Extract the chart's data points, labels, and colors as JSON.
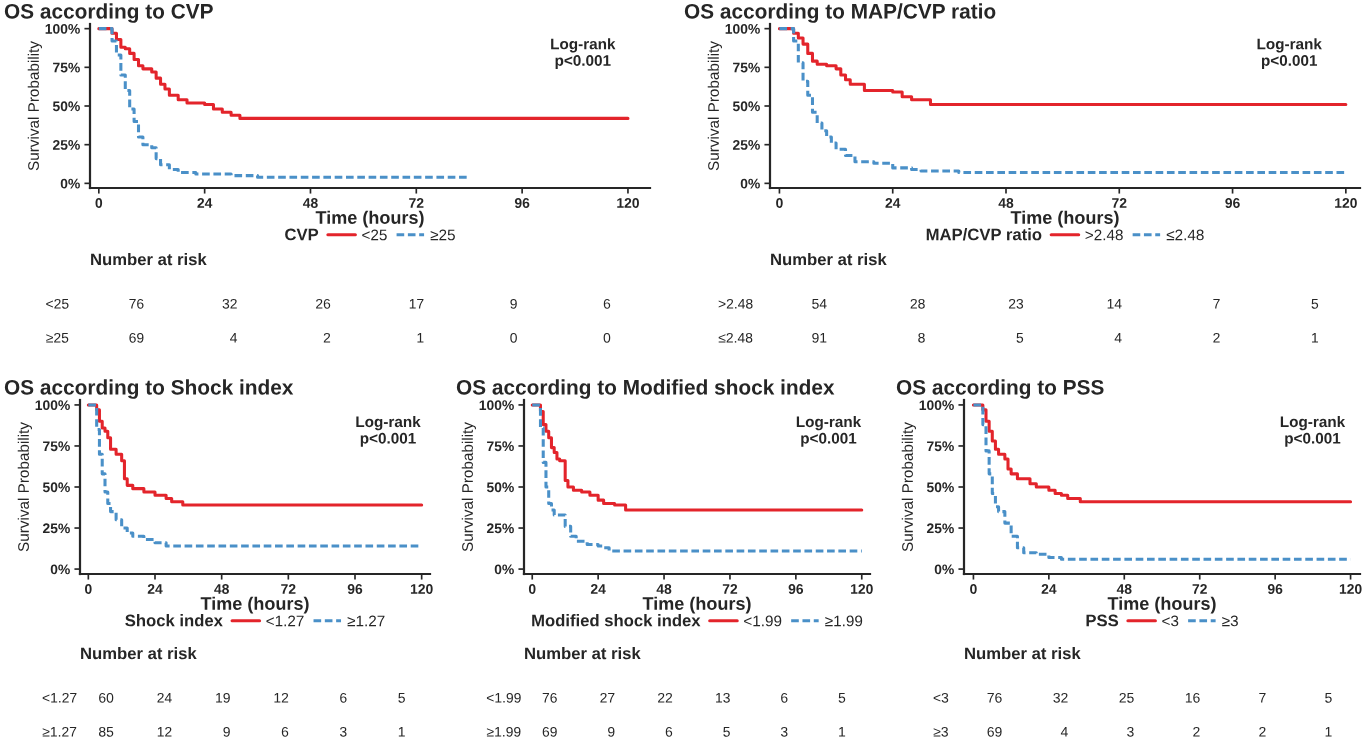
{
  "chart_data": [
    {
      "type": "step",
      "title": "OS according to CVP",
      "xlabel": "Time (hours)",
      "ylabel": "Survival Probability",
      "legend_title": "CVP",
      "legend": "bottom",
      "annotations": [
        "Log-rank\np<0.001"
      ],
      "xlim": [
        -2,
        125
      ],
      "xticks": [
        0,
        24,
        48,
        72,
        96,
        120
      ],
      "ylim": [
        -3,
        103
      ],
      "yticks": [
        {
          "value": 0,
          "label": "0%"
        },
        {
          "value": 25,
          "label": "25%"
        },
        {
          "value": 50,
          "label": "50%"
        },
        {
          "value": 75,
          "label": "75%"
        },
        {
          "value": 100,
          "label": "100%"
        }
      ],
      "series": [
        {
          "name": "<25",
          "color": "#e3242b",
          "line_style": "solid",
          "x": [
            0,
            2,
            3,
            4,
            5,
            6,
            7,
            8,
            9,
            10,
            12,
            13,
            14,
            15,
            16,
            18,
            20,
            24,
            26,
            28,
            30,
            32,
            120
          ],
          "values": [
            100,
            100,
            97,
            93,
            88,
            87,
            84,
            80,
            76,
            74,
            72,
            68,
            64,
            61,
            57,
            54,
            52,
            51,
            48,
            46,
            44,
            42,
            42
          ]
        },
        {
          "name": "≥25",
          "color": "#4a90c8",
          "line_style": "dashed",
          "x": [
            0,
            2,
            3,
            4,
            5,
            6,
            7,
            8,
            9,
            10,
            12,
            13,
            14,
            16,
            18,
            22,
            30,
            36,
            84
          ],
          "values": [
            100,
            100,
            92,
            83,
            70,
            60,
            48,
            40,
            30,
            25,
            23,
            16,
            12,
            9,
            7,
            6,
            5,
            4,
            4
          ]
        }
      ]
    },
    {
      "type": "step",
      "title": "OS according to MAP/CVP ratio",
      "xlabel": "Time (hours)",
      "ylabel": "Survival Probability",
      "legend_title": "MAP/CVP ratio",
      "legend": "bottom",
      "annotations": [
        "Log-rank\np<0.001"
      ],
      "xlim": [
        -2,
        123
      ],
      "xticks": [
        0,
        24,
        48,
        72,
        96,
        120
      ],
      "ylim": [
        -3,
        103
      ],
      "yticks": [
        {
          "value": 0,
          "label": "0%"
        },
        {
          "value": 25,
          "label": "25%"
        },
        {
          "value": 50,
          "label": "50%"
        },
        {
          "value": 75,
          "label": "75%"
        },
        {
          "value": 100,
          "label": "100%"
        }
      ],
      "series": [
        {
          "name": ">2.48",
          "color": "#e3242b",
          "line_style": "solid",
          "x": [
            0,
            2,
            3,
            4,
            5,
            6,
            7,
            8,
            10,
            12,
            13,
            14,
            15,
            18,
            24,
            26,
            28,
            32,
            120
          ],
          "values": [
            100,
            100,
            97,
            94,
            90,
            84,
            79,
            77,
            76,
            74,
            70,
            67,
            64,
            60,
            59,
            56,
            54,
            51,
            51
          ]
        },
        {
          "name": "≤2.48",
          "color": "#4a90c8",
          "line_style": "dashed",
          "x": [
            0,
            2,
            3,
            4,
            5,
            6,
            7,
            8,
            9,
            10,
            11,
            12,
            14,
            16,
            20,
            24,
            28,
            30,
            38,
            120
          ],
          "values": [
            100,
            100,
            92,
            78,
            66,
            57,
            46,
            39,
            34,
            30,
            26,
            22,
            18,
            14,
            13,
            10,
            9,
            8,
            7,
            7
          ]
        }
      ]
    },
    {
      "type": "other",
      "title": "Number at risk",
      "annotations": [
        "<25",
        "76",
        "32",
        "26",
        "17",
        "9",
        "6",
        "≥25",
        "69",
        "4",
        "2",
        "1",
        "0",
        "0"
      ]
    },
    {
      "type": "other",
      "title": "Number at risk",
      "annotations": [
        ">2.48",
        "54",
        "28",
        "23",
        "14",
        "7",
        "5",
        "≤2.48",
        "91",
        "8",
        "5",
        "4",
        "2",
        "1"
      ]
    },
    {
      "type": "step",
      "title": "OS according to Shock index",
      "xlabel": "Time (hours)",
      "ylabel": "Survival Probability",
      "legend_title": "Shock index",
      "legend": "bottom",
      "annotations": [
        "Log-rank\np<0.001"
      ],
      "xlim": [
        -3,
        123
      ],
      "xticks": [
        0,
        24,
        48,
        72,
        96,
        120
      ],
      "ylim": [
        -3,
        103
      ],
      "yticks": [
        {
          "value": 0,
          "label": "0%"
        },
        {
          "value": 25,
          "label": "25%"
        },
        {
          "value": 50,
          "label": "50%"
        },
        {
          "value": 75,
          "label": "75%"
        },
        {
          "value": 100,
          "label": "100%"
        }
      ],
      "series": [
        {
          "name": "<1.27",
          "color": "#e3242b",
          "line_style": "solid",
          "x": [
            0,
            3,
            4,
            5,
            6,
            7,
            8,
            10,
            12,
            13,
            14,
            16,
            20,
            24,
            28,
            30,
            34,
            120
          ],
          "values": [
            100,
            97,
            90,
            86,
            84,
            80,
            73,
            70,
            66,
            55,
            51,
            49,
            47,
            45,
            43,
            41,
            39,
            39
          ]
        },
        {
          "name": "≥1.27",
          "color": "#4a90c8",
          "line_style": "dashed",
          "x": [
            0,
            2,
            3,
            4,
            5,
            6,
            7,
            8,
            10,
            12,
            14,
            16,
            20,
            24,
            28,
            120
          ],
          "values": [
            100,
            100,
            85,
            70,
            58,
            47,
            40,
            35,
            30,
            25,
            22,
            20,
            18,
            16,
            14,
            14
          ]
        }
      ]
    },
    {
      "type": "step",
      "title": "OS according to Modified shock index",
      "xlabel": "Time (hours)",
      "ylabel": "Survival Probability",
      "legend_title": "Modified shock index",
      "legend": "bottom",
      "annotations": [
        "Log-rank\np<0.001"
      ],
      "xlim": [
        -3,
        123
      ],
      "xticks": [
        0,
        24,
        48,
        72,
        96,
        120
      ],
      "ylim": [
        -3,
        103
      ],
      "yticks": [
        {
          "value": 0,
          "label": "0%"
        },
        {
          "value": 25,
          "label": "25%"
        },
        {
          "value": 50,
          "label": "50%"
        },
        {
          "value": 75,
          "label": "75%"
        },
        {
          "value": 100,
          "label": "100%"
        }
      ],
      "series": [
        {
          "name": "<1.99",
          "color": "#e3242b",
          "line_style": "solid",
          "x": [
            0,
            3,
            4,
            5,
            6,
            7,
            8,
            9,
            10,
            12,
            13,
            15,
            18,
            21,
            24,
            26,
            30,
            34,
            120
          ],
          "values": [
            100,
            96,
            88,
            84,
            80,
            74,
            71,
            67,
            66,
            54,
            50,
            48,
            47,
            45,
            42,
            40,
            39,
            36,
            36
          ]
        },
        {
          "name": "≥1.99",
          "color": "#4a90c8",
          "line_style": "dashed",
          "x": [
            0,
            2,
            3,
            4,
            5,
            6,
            7,
            8,
            12,
            14,
            16,
            20,
            24,
            26,
            28,
            120
          ],
          "values": [
            100,
            100,
            86,
            65,
            50,
            40,
            36,
            33,
            26,
            20,
            17,
            15,
            14,
            13,
            11,
            11
          ]
        }
      ]
    },
    {
      "type": "step",
      "title": "OS according to PSS",
      "xlabel": "Time (hours)",
      "ylabel": "Survival Probability",
      "legend_title": "PSS",
      "legend": "bottom",
      "annotations": [
        "Log-rank\np<0.001"
      ],
      "xlim": [
        -3,
        123
      ],
      "xticks": [
        0,
        24,
        48,
        72,
        96,
        120
      ],
      "ylim": [
        -3,
        103
      ],
      "yticks": [
        {
          "value": 0,
          "label": "0%"
        },
        {
          "value": 25,
          "label": "25%"
        },
        {
          "value": 50,
          "label": "50%"
        },
        {
          "value": 75,
          "label": "75%"
        },
        {
          "value": 100,
          "label": "100%"
        }
      ],
      "series": [
        {
          "name": "<3",
          "color": "#e3242b",
          "line_style": "solid",
          "x": [
            0,
            3,
            4,
            5,
            6,
            7,
            8,
            10,
            11,
            12,
            14,
            18,
            20,
            24,
            26,
            28,
            30,
            34,
            120
          ],
          "values": [
            100,
            97,
            90,
            84,
            78,
            73,
            70,
            67,
            61,
            58,
            55,
            52,
            50,
            48,
            46,
            45,
            43,
            41,
            41
          ]
        },
        {
          "name": "≥3",
          "color": "#4a90c8",
          "line_style": "dashed",
          "x": [
            0,
            2,
            3,
            4,
            5,
            6,
            7,
            8,
            10,
            12,
            14,
            16,
            20,
            24,
            28,
            120
          ],
          "values": [
            100,
            100,
            88,
            72,
            58,
            46,
            38,
            35,
            28,
            20,
            13,
            10,
            9,
            7,
            6,
            6
          ]
        }
      ]
    },
    {
      "type": "other",
      "title": "Number at risk",
      "annotations": [
        "<1.27",
        "60",
        "24",
        "19",
        "12",
        "6",
        "5",
        "≥1.27",
        "85",
        "12",
        "9",
        "6",
        "3",
        "1"
      ]
    },
    {
      "type": "other",
      "title": "Number at risk",
      "annotations": [
        "<1.99",
        "76",
        "27",
        "22",
        "13",
        "6",
        "5",
        "≥1.99",
        "69",
        "9",
        "6",
        "5",
        "3",
        "1"
      ]
    },
    {
      "type": "other",
      "title": "Number at risk",
      "annotations": [
        "<3",
        "76",
        "32",
        "25",
        "16",
        "7",
        "5",
        "≥3",
        "69",
        "4",
        "3",
        "2",
        "2",
        "1"
      ]
    }
  ]
}
